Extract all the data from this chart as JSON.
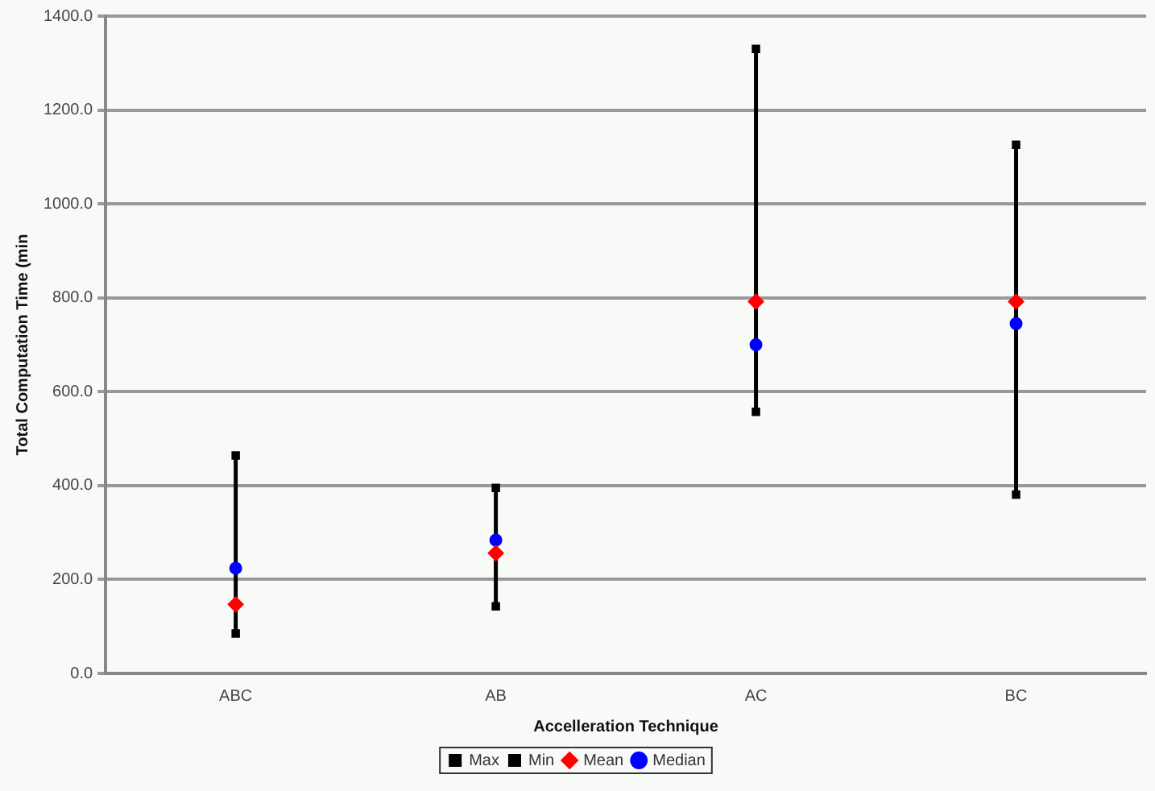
{
  "chart_data": {
    "type": "scatter",
    "xlabel": "Accelleration Technique",
    "ylabel": "Total Computation Time (min",
    "categories": [
      "ABC",
      "AB",
      "AC",
      "BC"
    ],
    "series": [
      {
        "name": "Max",
        "color": "#000000",
        "marker": "square",
        "values": [
          464,
          395,
          1330,
          1126
        ]
      },
      {
        "name": "Min",
        "color": "#000000",
        "marker": "square",
        "values": [
          85,
          143,
          557,
          381
        ]
      },
      {
        "name": "Mean",
        "color": "#ff0000",
        "marker": "diamond",
        "values": [
          147,
          256,
          792,
          792
        ]
      },
      {
        "name": "Median",
        "color": "#0000ff",
        "marker": "circle",
        "values": [
          224,
          284,
          700,
          745
        ]
      }
    ],
    "ylim": [
      0,
      1400
    ],
    "yticks": [
      {
        "value": 0,
        "label": "0.0"
      },
      {
        "value": 200,
        "label": "200.0"
      },
      {
        "value": 400,
        "label": "400.0"
      },
      {
        "value": 600,
        "label": "600.0"
      },
      {
        "value": 800,
        "label": "800.0"
      },
      {
        "value": 1000,
        "label": "1000.0"
      },
      {
        "value": 1200,
        "label": "1200.0"
      },
      {
        "value": 1400,
        "label": "1400.0"
      }
    ],
    "grid": "y",
    "legend": "bottom"
  }
}
